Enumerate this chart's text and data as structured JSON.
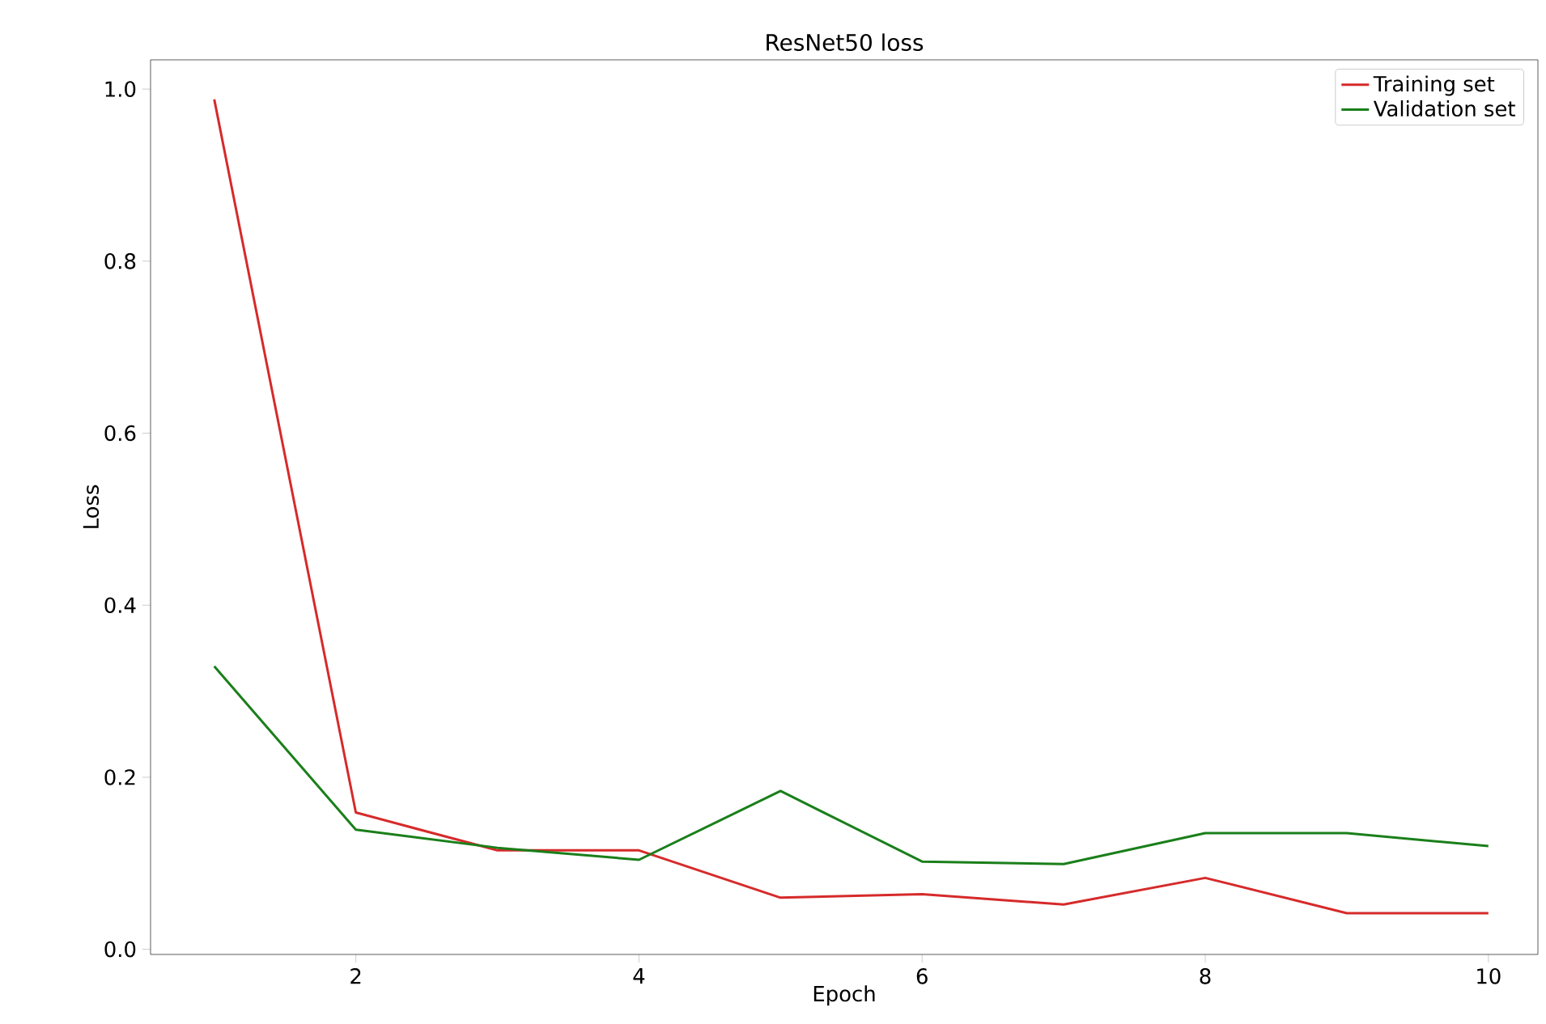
{
  "chart_data": {
    "type": "line",
    "title": "ResNet50 loss",
    "xlabel": "Epoch",
    "ylabel": "Loss",
    "x": [
      1,
      2,
      3,
      4,
      5,
      6,
      7,
      8,
      9,
      10
    ],
    "series": [
      {
        "name": "Training set",
        "color": "#d62a2a",
        "values": [
          0.988,
          0.159,
          0.115,
          0.115,
          0.06,
          0.064,
          0.052,
          0.083,
          0.042,
          0.042
        ]
      },
      {
        "name": "Validation set",
        "color": "#1a7f1a",
        "values": [
          0.329,
          0.139,
          0.118,
          0.104,
          0.184,
          0.102,
          0.099,
          0.135,
          0.135,
          0.12
        ]
      }
    ],
    "xlim": [
      0.55,
      10.35
    ],
    "ylim": [
      -0.006,
      1.034
    ],
    "xticks": [
      2,
      4,
      6,
      8,
      10
    ],
    "yticks": [
      {
        "value": 0,
        "label": "0.0"
      },
      {
        "value": 0.2,
        "label": "0.2"
      },
      {
        "value": 0.4,
        "label": "0.4"
      },
      {
        "value": 0.6,
        "label": "0.6"
      },
      {
        "value": 0.8,
        "label": "0.8"
      },
      {
        "value": 1,
        "label": "1.0"
      }
    ],
    "legend": "top right",
    "marker": "none",
    "line_style": "solid",
    "grid": false
  }
}
